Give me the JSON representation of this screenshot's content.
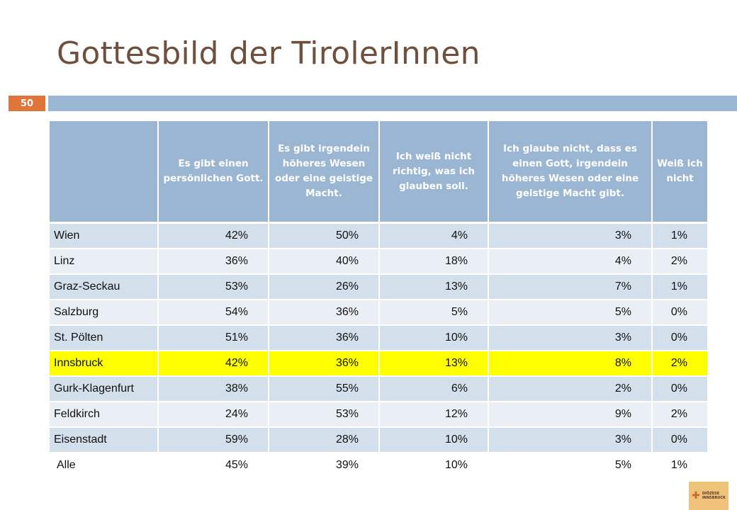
{
  "slide": {
    "title": "Gottesbild der TirolerInnen",
    "page_number": "50"
  },
  "table": {
    "headers": [
      "",
      "Es gibt einen persönlichen Gott.",
      "Es gibt irgendein höheres Wesen oder eine geistige Macht.",
      "Ich weiß nicht richtig, was ich glauben soll.",
      "Ich glaube nicht, dass es einen Gott, irgendein höheres Wesen oder eine geistige Macht gibt.",
      "Weiß ich nicht"
    ],
    "rows": [
      {
        "label": "Wien",
        "values": [
          "42%",
          "50%",
          "4%",
          "3%",
          "1%"
        ]
      },
      {
        "label": "Linz",
        "values": [
          "36%",
          "40%",
          "18%",
          "4%",
          "2%"
        ]
      },
      {
        "label": "Graz-Seckau",
        "values": [
          "53%",
          "26%",
          "13%",
          "7%",
          "1%"
        ]
      },
      {
        "label": "Salzburg",
        "values": [
          "54%",
          "36%",
          "5%",
          "5%",
          "0%"
        ]
      },
      {
        "label": "St. Pölten",
        "values": [
          "51%",
          "36%",
          "10%",
          "3%",
          "0%"
        ]
      },
      {
        "label": "Innsbruck",
        "values": [
          "42%",
          "36%",
          "13%",
          "8%",
          "2%"
        ]
      },
      {
        "label": "Gurk-Klagenfurt",
        "values": [
          "38%",
          "55%",
          "6%",
          "2%",
          "0%"
        ]
      },
      {
        "label": "Feldkirch",
        "values": [
          "24%",
          "53%",
          "12%",
          "9%",
          "2%"
        ]
      },
      {
        "label": "Eisenstadt",
        "values": [
          "59%",
          "28%",
          "10%",
          "3%",
          "0%"
        ]
      },
      {
        "label": "Alle",
        "values": [
          "45%",
          "39%",
          "10%",
          "5%",
          "1%"
        ]
      }
    ],
    "highlight_row": "Innsbruck"
  },
  "logo": {
    "icon": "cross-icon",
    "line1": "DIÖZESE",
    "line2": "INNSBRUCK"
  },
  "colors": {
    "title": "#6f4f3d",
    "accent_bar": "#9bb6d2",
    "page_badge": "#e0753b",
    "highlight": "#ffff00"
  }
}
